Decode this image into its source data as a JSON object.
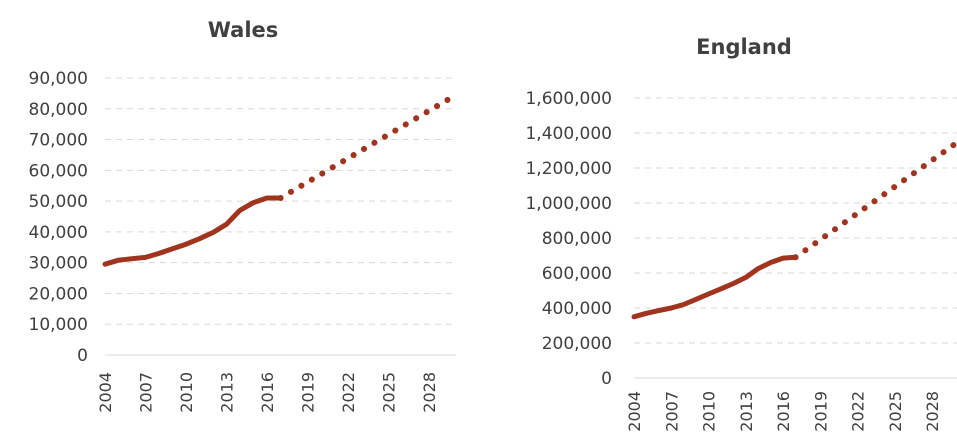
{
  "colors": {
    "series": "#a0341e",
    "grid": "#d9d9d9",
    "text": "#404040"
  },
  "chart_data": [
    {
      "type": "line",
      "title": "Wales",
      "ylim": [
        0,
        90000
      ],
      "yticks": [
        "0",
        "10,000",
        "20,000",
        "30,000",
        "40,000",
        "50,000",
        "60,000",
        "70,000",
        "80,000",
        "90,000"
      ],
      "xlim": [
        2004,
        2030
      ],
      "xticks": [
        "2004",
        "2007",
        "2010",
        "2013",
        "2016",
        "2019",
        "2022",
        "2025",
        "2028"
      ],
      "grid": true,
      "series": [
        {
          "style": "solid",
          "x": [
            2004,
            2005,
            2006,
            2007,
            2008,
            2009,
            2010,
            2011,
            2012,
            2013,
            2014,
            2015,
            2016,
            2017
          ],
          "values": [
            29500,
            30800,
            31300,
            31700,
            33000,
            34500,
            36000,
            37800,
            39800,
            42500,
            47000,
            49500,
            51000,
            51000
          ]
        },
        {
          "style": "dotted",
          "x": [
            2017,
            2030
          ],
          "values": [
            51000,
            84500
          ]
        }
      ]
    },
    {
      "type": "line",
      "title": "England",
      "ylim": [
        0,
        1600000
      ],
      "yticks": [
        "0",
        "200,000",
        "400,000",
        "600,000",
        "800,000",
        "1,000,000",
        "1,200,000",
        "1,400,000",
        "1,600,000"
      ],
      "xlim": [
        2004,
        2030
      ],
      "xticks": [
        "2004",
        "2007",
        "2010",
        "2013",
        "2016",
        "2019",
        "2022",
        "2025",
        "2028"
      ],
      "grid": true,
      "series": [
        {
          "style": "solid",
          "x": [
            2004,
            2005,
            2006,
            2007,
            2008,
            2009,
            2010,
            2011,
            2012,
            2013,
            2014,
            2015,
            2016,
            2017
          ],
          "values": [
            350000,
            370000,
            385000,
            400000,
            420000,
            450000,
            480000,
            510000,
            540000,
            575000,
            625000,
            660000,
            685000,
            690000
          ]
        },
        {
          "style": "dotted",
          "x": [
            2017,
            2030
          ],
          "values": [
            690000,
            1345000
          ]
        }
      ]
    }
  ]
}
